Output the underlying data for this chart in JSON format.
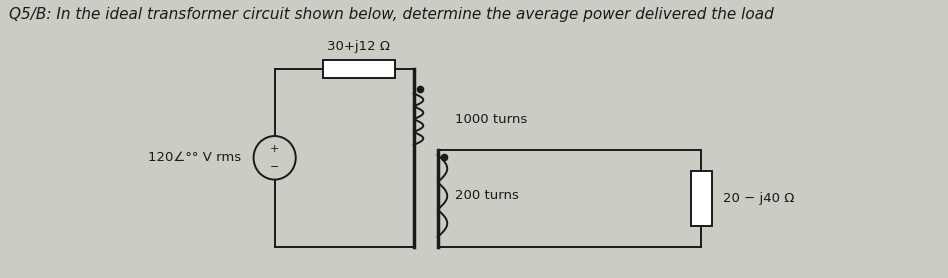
{
  "title": "Q5/B: In the ideal transformer circuit shown below, determine the average power delivered the load",
  "title_fontsize": 11,
  "source_label": "120∠°° V rms",
  "impedance_label": "30+j12 Ω",
  "turns1_label": "1000 turns",
  "turns2_label": "200 turns",
  "load_label": "20 − j40 Ω",
  "bg_color": "#cccbc4",
  "line_color": "#1a1a1a",
  "text_color": "#1a1a1a",
  "font_size": 9.5
}
